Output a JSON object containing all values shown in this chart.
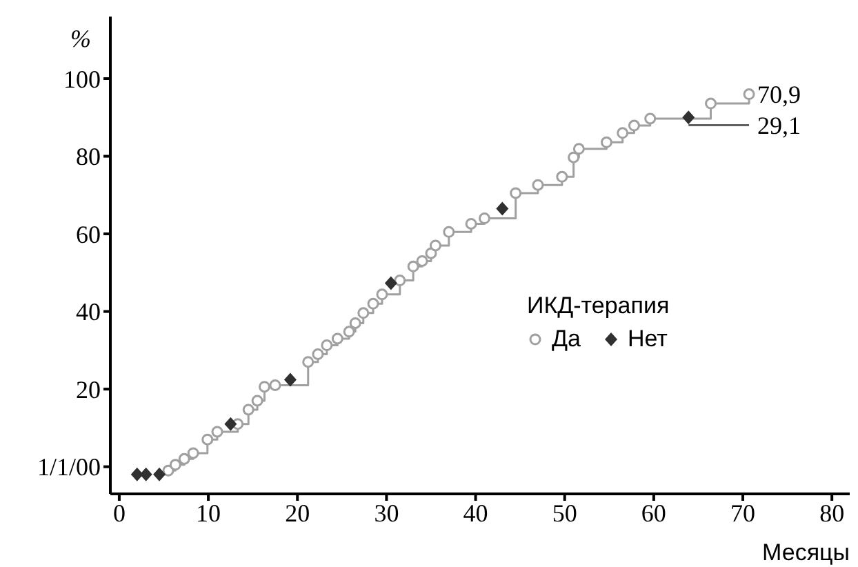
{
  "chart_data": {
    "type": "step",
    "ylabel": "%",
    "xlabel": "Месяцы",
    "legend_title": "ИКД-терапия",
    "legend": "right",
    "grid": false,
    "xlim": [
      -1,
      82
    ],
    "xticks": [
      0,
      10,
      20,
      30,
      40,
      50,
      60,
      70,
      80
    ],
    "ylim": [
      -7,
      116
    ],
    "yticks": [
      {
        "value": 0,
        "label": "1/1/00"
      },
      20,
      40,
      60,
      80,
      100
    ],
    "series": [
      {
        "name": "Да",
        "color": "#a0a0a0",
        "marker": "circle",
        "x": [
          5.5,
          6.3,
          7.3,
          8.3,
          9.9,
          11,
          13.3,
          14.5,
          15.5,
          16.3,
          17.5,
          21.2,
          22.3,
          23.3,
          24.5,
          25.8,
          26.5,
          27.4,
          28.5,
          29.5,
          31.5,
          33,
          34,
          35,
          35.5,
          37,
          39.5,
          41,
          44.5,
          47,
          49.7,
          51,
          51.6,
          54.7,
          56.5,
          57.8,
          59.6,
          66.4,
          70.7
        ],
        "values": [
          -1,
          0.5,
          2,
          3.5,
          7,
          9,
          11,
          14.7,
          17,
          20.6,
          21,
          27,
          29,
          31.3,
          33,
          34.8,
          37,
          39.6,
          42,
          44.4,
          48,
          51.6,
          53,
          55,
          57,
          60.5,
          62.6,
          64,
          70.5,
          72.6,
          74.7,
          79.7,
          81.9,
          83.6,
          86,
          87.9,
          89.7,
          93.6,
          96
        ]
      },
      {
        "name": "Нет",
        "type": "scatter",
        "color": "#303030",
        "marker": "diamond",
        "x": [
          2,
          3,
          4.5,
          12.5,
          19.2,
          30.5,
          43,
          63.9
        ],
        "values": [
          -2,
          -2,
          -2,
          11,
          22.4,
          47.3,
          66.5,
          90
        ]
      },
      {
        "type": "line",
        "color": "#606060",
        "marker": "none",
        "x": [
          63.9,
          70.7
        ],
        "values": [
          88,
          88
        ]
      }
    ],
    "annotations": [
      {
        "text": "70,9",
        "x": 70.7,
        "y": 96
      },
      {
        "text": "29,1",
        "x": 70.7,
        "y": 88
      }
    ]
  }
}
